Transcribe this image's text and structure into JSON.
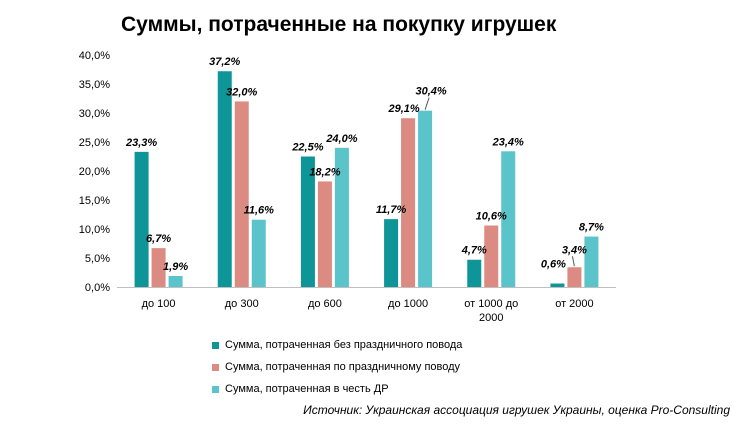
{
  "chart_data": {
    "type": "bar",
    "title": "Суммы, потраченные на покупку игрушек",
    "categories": [
      "до 100",
      "до 300",
      "до 600",
      "до 1000",
      "от 1000 до 2000",
      "от 2000"
    ],
    "series": [
      {
        "name": "Сумма, потраченная без праздничного повода",
        "color": "#0e9597",
        "values": [
          23.3,
          37.2,
          22.5,
          11.7,
          4.7,
          0.6
        ],
        "labels": [
          "23,3%",
          "37,2%",
          "22,5%",
          "11,7%",
          "4,7%",
          "0,6%"
        ]
      },
      {
        "name": "Сумма, потраченная по праздничному поводу",
        "color": "#db8b81",
        "values": [
          6.7,
          32.0,
          18.2,
          29.1,
          10.6,
          3.4
        ],
        "labels": [
          "6,7%",
          "32,0%",
          "18,2%",
          "29,1%",
          "10,6%",
          "3,4%"
        ]
      },
      {
        "name": "Сумма, потраченная в честь ДР",
        "color": "#5bc4cb",
        "values": [
          1.9,
          11.6,
          24.0,
          30.4,
          23.4,
          8.7
        ],
        "labels": [
          "1,9%",
          "11,6%",
          "24,0%",
          "30,4%",
          "23,4%",
          "8,7%"
        ]
      }
    ],
    "y_ticks": [
      "0,0%",
      "5,0%",
      "10,0%",
      "15,0%",
      "20,0%",
      "25,0%",
      "30,0%",
      "35,0%",
      "40,0%"
    ],
    "ylim": [
      0,
      40
    ],
    "grid": false,
    "legend_position": "bottom"
  },
  "source_note": "Источник: Украинская ассоциация игрушек Украины, оценка Pro-Consulting"
}
